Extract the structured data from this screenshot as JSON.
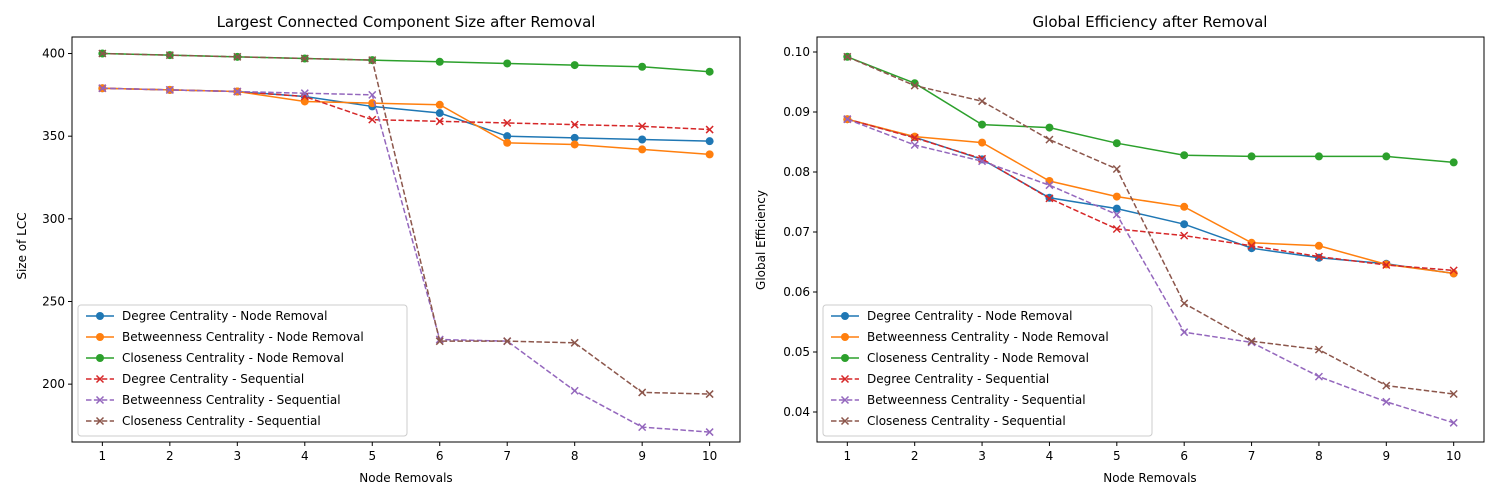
{
  "chart_data": [
    {
      "type": "line",
      "title": "Largest Connected Component Size after Removal",
      "xlabel": "Node Removals",
      "ylabel": "Size of LCC",
      "x": [
        1,
        2,
        3,
        4,
        5,
        6,
        7,
        8,
        9,
        10
      ],
      "xlim": [
        0.55,
        10.45
      ],
      "ylim": [
        165,
        410
      ],
      "yticks": [
        200,
        250,
        300,
        350,
        400
      ],
      "ytick_labels": [
        "200",
        "250",
        "300",
        "350",
        "400"
      ],
      "grid": false,
      "legend_position": "lower-left",
      "series": [
        {
          "name": "Degree Centrality - Node Removal",
          "color": "#1f77b4",
          "style": "solid",
          "marker": "circle",
          "values": [
            379,
            378,
            377,
            374,
            368,
            364,
            350,
            349,
            348,
            347
          ]
        },
        {
          "name": "Betweenness Centrality - Node Removal",
          "color": "#ff7f0e",
          "style": "solid",
          "marker": "circle",
          "values": [
            379,
            378,
            377,
            371,
            370,
            369,
            346,
            345,
            342,
            339
          ]
        },
        {
          "name": "Closeness Centrality - Node Removal",
          "color": "#2ca02c",
          "style": "solid",
          "marker": "circle",
          "values": [
            400,
            399,
            398,
            397,
            396,
            395,
            394,
            393,
            392,
            389
          ]
        },
        {
          "name": "Degree Centrality - Sequential",
          "color": "#d62728",
          "style": "dashed",
          "marker": "x",
          "values": [
            379,
            378,
            377,
            374,
            360,
            359,
            358,
            357,
            356,
            354
          ]
        },
        {
          "name": "Betweenness Centrality - Sequential",
          "color": "#9467bd",
          "style": "dashed",
          "marker": "x",
          "values": [
            379,
            378,
            377,
            376,
            375,
            227,
            226,
            196,
            174,
            171
          ]
        },
        {
          "name": "Closeness Centrality - Sequential",
          "color": "#8c564b",
          "style": "dashed",
          "marker": "x",
          "values": [
            400,
            399,
            398,
            397,
            396,
            226,
            226,
            225,
            195,
            194
          ]
        }
      ]
    },
    {
      "type": "line",
      "title": "Global Efficiency after Removal",
      "xlabel": "Node Removals",
      "ylabel": "Global Efficiency",
      "x": [
        1,
        2,
        3,
        4,
        5,
        6,
        7,
        8,
        9,
        10
      ],
      "xlim": [
        0.55,
        10.45
      ],
      "ylim": [
        0.035,
        0.1025
      ],
      "yticks": [
        0.04,
        0.05,
        0.06,
        0.07,
        0.08,
        0.09,
        0.1
      ],
      "ytick_labels": [
        "0.04",
        "0.05",
        "0.06",
        "0.07",
        "0.08",
        "0.09",
        "0.10"
      ],
      "grid": false,
      "legend_position": "lower-left",
      "series": [
        {
          "name": "Degree Centrality - Node Removal",
          "color": "#1f77b4",
          "style": "solid",
          "marker": "circle",
          "values": [
            0.0888,
            0.0858,
            0.0821,
            0.0757,
            0.0739,
            0.0713,
            0.0673,
            0.0657,
            0.0647,
            0.0631
          ]
        },
        {
          "name": "Betweenness Centrality - Node Removal",
          "color": "#ff7f0e",
          "style": "solid",
          "marker": "circle",
          "values": [
            0.0888,
            0.0859,
            0.0849,
            0.0785,
            0.0759,
            0.0742,
            0.0682,
            0.0677,
            0.0646,
            0.0631
          ]
        },
        {
          "name": "Closeness Centrality - Node Removal",
          "color": "#2ca02c",
          "style": "solid",
          "marker": "circle",
          "values": [
            0.0992,
            0.0948,
            0.0879,
            0.0874,
            0.0848,
            0.0828,
            0.0826,
            0.0826,
            0.0826,
            0.0816
          ]
        },
        {
          "name": "Degree Centrality - Sequential",
          "color": "#d62728",
          "style": "dashed",
          "marker": "x",
          "values": [
            0.0888,
            0.0857,
            0.0822,
            0.0756,
            0.0705,
            0.0694,
            0.0677,
            0.0659,
            0.0645,
            0.0636
          ]
        },
        {
          "name": "Betweenness Centrality - Sequential",
          "color": "#9467bd",
          "style": "dashed",
          "marker": "x",
          "values": [
            0.0888,
            0.0845,
            0.0818,
            0.0778,
            0.0729,
            0.0533,
            0.0516,
            0.0459,
            0.0417,
            0.0382
          ]
        },
        {
          "name": "Closeness Centrality - Sequential",
          "color": "#8c564b",
          "style": "dashed",
          "marker": "x",
          "values": [
            0.0992,
            0.0944,
            0.0918,
            0.0854,
            0.0805,
            0.0581,
            0.0518,
            0.0504,
            0.0444,
            0.043
          ]
        }
      ]
    }
  ]
}
